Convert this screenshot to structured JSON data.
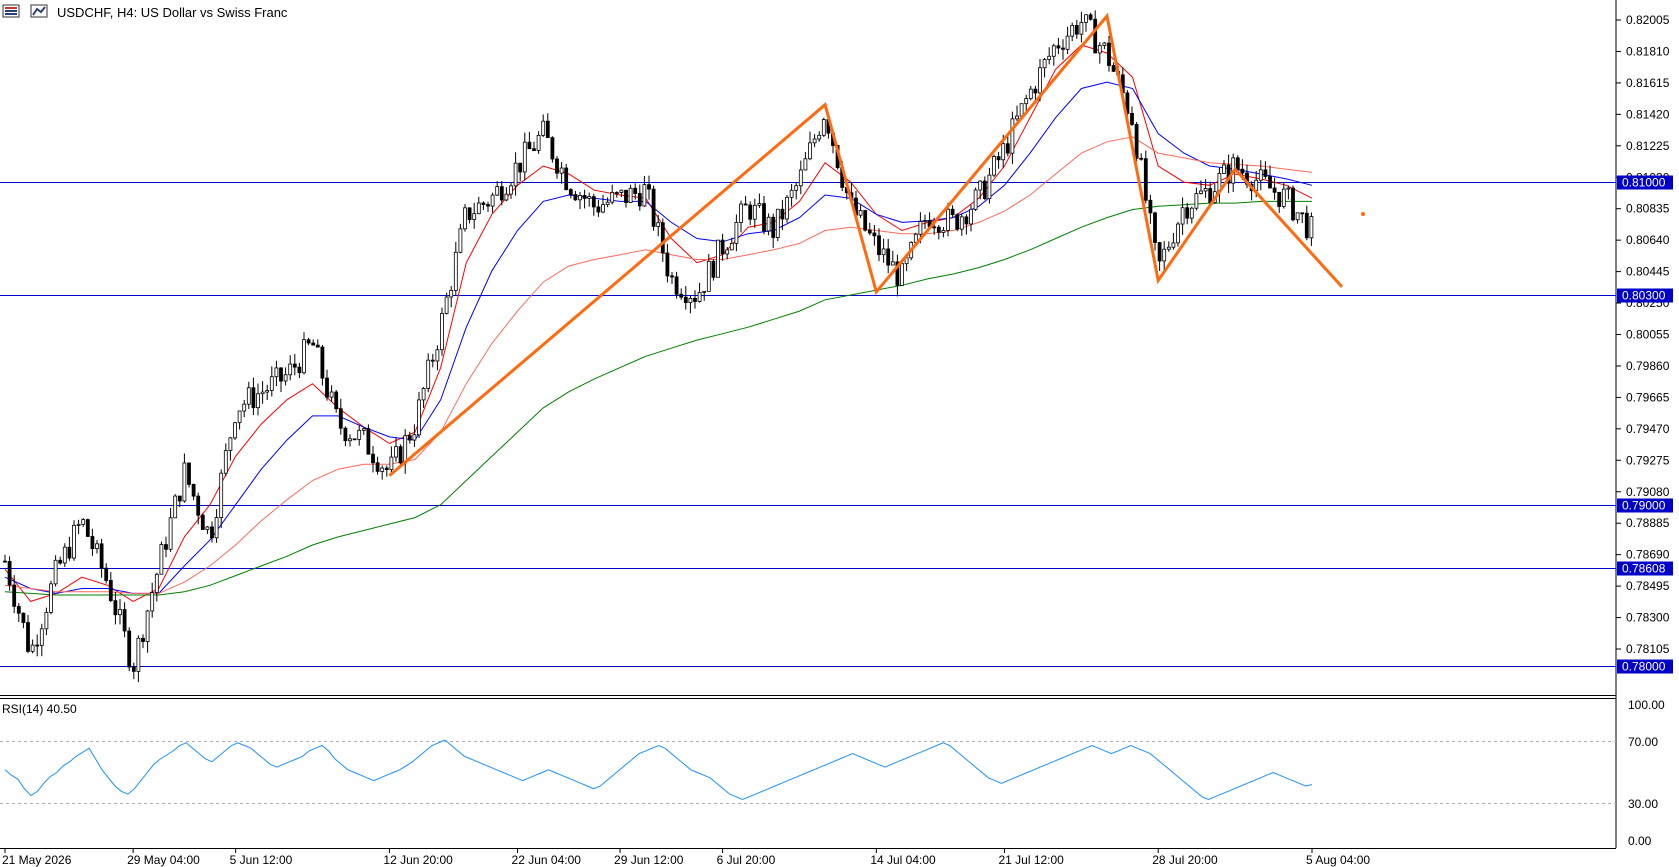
{
  "header": {
    "title": "USDCHF, H4:  US Dollar vs Swiss Franc",
    "icon_1": "toolbar-grid-icon",
    "icon_2": "toolbar-chart-icon"
  },
  "colors": {
    "candle": "#000000",
    "ma_fast": "#ff0000",
    "ma_mid": "#0000ff",
    "ma_slow": "#ff6a5a",
    "ma_long": "#008000",
    "zigzag": "#ff6a0f",
    "hline": "#0000c8",
    "rsi": "#1e90ff",
    "axis_label_bg": "#0000c8",
    "axis_label_text": "#ffffff"
  },
  "rsi_panel": {
    "label": "RSI(14) 40.50",
    "levels": [
      "100.00",
      "70.00",
      "30.00",
      "0.00"
    ]
  },
  "chart_data": {
    "type": "candlestick",
    "title": "USDCHF, H4:  US Dollar vs Swiss Franc",
    "price_ticks": [
      "0.82005",
      "0.81810",
      "0.81615",
      "0.81420",
      "0.81225",
      "0.81030",
      "0.80835",
      "0.80640",
      "0.80445",
      "0.80250",
      "0.80055",
      "0.79860",
      "0.79665",
      "0.79470",
      "0.79275",
      "0.79080",
      "0.78885",
      "0.78690",
      "0.78495",
      "0.78300",
      "0.78105"
    ],
    "horizontal_levels": [
      {
        "value": 0.81,
        "label": "0.81000"
      },
      {
        "value": 0.803,
        "label": "0.80300"
      },
      {
        "value": 0.79,
        "label": "0.79000"
      },
      {
        "value": 0.78608,
        "label": "0.78608"
      },
      {
        "value": 0.78,
        "label": "0.78000"
      }
    ],
    "x_ticks": [
      "21 May 2026",
      "29 May 04:00",
      "5 Jun 12:00",
      "12 Jun 20:00",
      "22 Jun 04:00",
      "29 Jun 12:00",
      "6 Jul 20:00",
      "14 Jul 04:00",
      "21 Jul 12:00",
      "28 Jul 20:00",
      "5 Aug 04:00"
    ],
    "close_path": [
      [
        "21 May 2026",
        0.7865
      ],
      [
        "24 May",
        0.7808
      ],
      [
        "26 May",
        0.7858
      ],
      [
        "27 May",
        0.789
      ],
      [
        "28 May",
        0.7852
      ],
      [
        "29 May 04:00",
        0.78
      ],
      [
        "1 Jun",
        0.7862
      ],
      [
        "3 Jun",
        0.792
      ],
      [
        "4 Jun",
        0.788
      ],
      [
        "5 Jun 12:00",
        0.796
      ],
      [
        "7 Jun",
        0.797
      ],
      [
        "9 Jun",
        0.798
      ],
      [
        "10 Jun",
        0.8
      ],
      [
        "11 Jun",
        0.795
      ],
      [
        "12 Jun",
        0.794
      ],
      [
        "12 Jun 20:00",
        0.792
      ],
      [
        "14 Jun",
        0.795
      ],
      [
        "16 Jun",
        0.801
      ],
      [
        "18 Jun",
        0.808
      ],
      [
        "20 Jun",
        0.809
      ],
      [
        "22 Jun 04:00",
        0.811
      ],
      [
        "24 Jun",
        0.813
      ],
      [
        "26 Jun",
        0.81
      ],
      [
        "27 Jun",
        0.8085
      ],
      [
        "29 Jun 12:00",
        0.809
      ],
      [
        "1 Jul",
        0.8095
      ],
      [
        "2 Jul",
        0.804
      ],
      [
        "4 Jul",
        0.803
      ],
      [
        "6 Jul 20:00",
        0.806
      ],
      [
        "8 Jul",
        0.8085
      ],
      [
        "10 Jul",
        0.807
      ],
      [
        "11 Jul",
        0.81
      ],
      [
        "12 Jul",
        0.8145
      ],
      [
        "13 Jul",
        0.8085
      ],
      [
        "14 Jul 04:00",
        0.806
      ],
      [
        "15 Jul",
        0.804
      ],
      [
        "16 Jul",
        0.808
      ],
      [
        "18 Jul",
        0.8075
      ],
      [
        "20 Jul",
        0.809
      ],
      [
        "21 Jul 12:00",
        0.812
      ],
      [
        "23 Jul",
        0.8155
      ],
      [
        "24 Jul",
        0.8185
      ],
      [
        "26 Jul",
        0.82
      ],
      [
        "27 Jul",
        0.818
      ],
      [
        "28 Jul",
        0.814
      ],
      [
        "28 Jul 20:00",
        0.8045
      ],
      [
        "30 Jul",
        0.8085
      ],
      [
        "31 Jul",
        0.8095
      ],
      [
        "1 Aug",
        0.811
      ],
      [
        "3 Aug",
        0.81
      ],
      [
        "4 Aug",
        0.809
      ],
      [
        "5 Aug 04:00",
        0.807
      ]
    ],
    "moving_averages": [
      {
        "color_key": "ma_fast",
        "values": [
          0.786,
          0.784,
          0.7845,
          0.7855,
          0.785,
          0.784,
          0.7848,
          0.788,
          0.79,
          0.793,
          0.795,
          0.7965,
          0.7975,
          0.796,
          0.7948,
          0.7938,
          0.7945,
          0.7985,
          0.805,
          0.808,
          0.8098,
          0.811,
          0.8105,
          0.8095,
          0.8092,
          0.809,
          0.8065,
          0.805,
          0.8055,
          0.8072,
          0.8075,
          0.8088,
          0.8112,
          0.81,
          0.808,
          0.807,
          0.8075,
          0.8078,
          0.809,
          0.811,
          0.814,
          0.817,
          0.8185,
          0.818,
          0.8165,
          0.811,
          0.81,
          0.8098,
          0.8105,
          0.8102,
          0.8098,
          0.809
        ]
      },
      {
        "color_key": "ma_mid",
        "values": [
          0.7855,
          0.7848,
          0.7845,
          0.7848,
          0.7848,
          0.7845,
          0.7845,
          0.7862,
          0.7878,
          0.79,
          0.7922,
          0.794,
          0.7955,
          0.7955,
          0.7948,
          0.7942,
          0.794,
          0.7965,
          0.801,
          0.8045,
          0.807,
          0.8088,
          0.8092,
          0.809,
          0.8088,
          0.8088,
          0.8075,
          0.8065,
          0.8063,
          0.8068,
          0.807,
          0.8078,
          0.8092,
          0.809,
          0.808,
          0.8075,
          0.8076,
          0.8078,
          0.8085,
          0.8098,
          0.8118,
          0.814,
          0.8158,
          0.8162,
          0.8158,
          0.813,
          0.8118,
          0.811,
          0.8108,
          0.8105,
          0.8102,
          0.8098
        ]
      },
      {
        "color_key": "ma_slow",
        "values": [
          0.785,
          0.7848,
          0.7846,
          0.7846,
          0.7846,
          0.7845,
          0.7845,
          0.7852,
          0.7862,
          0.7875,
          0.789,
          0.7903,
          0.7915,
          0.7922,
          0.7925,
          0.7925,
          0.7928,
          0.7945,
          0.7975,
          0.8,
          0.802,
          0.8038,
          0.8048,
          0.8052,
          0.8055,
          0.8058,
          0.8055,
          0.8052,
          0.8052,
          0.8055,
          0.8058,
          0.8062,
          0.807,
          0.8072,
          0.807,
          0.8068,
          0.8068,
          0.807,
          0.8075,
          0.8082,
          0.8092,
          0.8105,
          0.8118,
          0.8125,
          0.8128,
          0.8118,
          0.8115,
          0.8112,
          0.8111,
          0.811,
          0.8108,
          0.8106
        ]
      },
      {
        "color_key": "ma_long",
        "values": [
          0.7846,
          0.7845,
          0.7844,
          0.7844,
          0.7844,
          0.7844,
          0.7844,
          0.7846,
          0.785,
          0.7856,
          0.7862,
          0.7868,
          0.7875,
          0.788,
          0.7884,
          0.7888,
          0.7892,
          0.79,
          0.7915,
          0.793,
          0.7945,
          0.796,
          0.797,
          0.7978,
          0.7985,
          0.7992,
          0.7997,
          0.8002,
          0.8006,
          0.801,
          0.8015,
          0.802,
          0.8027,
          0.803,
          0.8033,
          0.8036,
          0.804,
          0.8043,
          0.8047,
          0.8052,
          0.8058,
          0.8065,
          0.8072,
          0.8078,
          0.8083,
          0.8085,
          0.8086,
          0.8087,
          0.8087,
          0.8088,
          0.8088,
          0.8088
        ]
      }
    ],
    "zigzag": [
      [
        "12 Jun 20:00",
        0.7918
      ],
      [
        "12 Jul",
        0.8148
      ],
      [
        "14 Jul 04:00",
        0.8032
      ],
      [
        "27 Jul",
        0.8203
      ],
      [
        "28 Jul 20:00",
        0.8039
      ],
      [
        "1 Aug",
        0.8108
      ],
      [
        "6 Aug",
        0.8035
      ]
    ],
    "rsi": {
      "period": 14,
      "last": 40.5,
      "ylim": [
        0,
        100
      ],
      "levels": [
        70,
        30
      ],
      "values": [
        52,
        48,
        45,
        38,
        33,
        36,
        42,
        47,
        50,
        55,
        58,
        62,
        65,
        68,
        60,
        52,
        46,
        40,
        36,
        34,
        38,
        44,
        50,
        56,
        60,
        63,
        66,
        70,
        72,
        68,
        64,
        60,
        58,
        62,
        66,
        70,
        72,
        70,
        68,
        64,
        60,
        56,
        54,
        56,
        58,
        60,
        62,
        66,
        68,
        70,
        66,
        60,
        56,
        52,
        50,
        48,
        46,
        44,
        46,
        48,
        50,
        52,
        55,
        58,
        62,
        66,
        70,
        72,
        74,
        70,
        66,
        62,
        60,
        58,
        56,
        54,
        52,
        50,
        48,
        46,
        44,
        46,
        48,
        50,
        52,
        50,
        48,
        46,
        44,
        42,
        40,
        38,
        40,
        44,
        48,
        52,
        56,
        60,
        64,
        66,
        68,
        70,
        68,
        64,
        60,
        56,
        52,
        50,
        48,
        46,
        42,
        38,
        34,
        32,
        30,
        32,
        34,
        36,
        38,
        40,
        42,
        44,
        46,
        48,
        50,
        52,
        54,
        56,
        58,
        60,
        62,
        64,
        62,
        60,
        58,
        56,
        54,
        56,
        58,
        60,
        62,
        64,
        66,
        68,
        70,
        72,
        70,
        66,
        62,
        58,
        54,
        50,
        46,
        44,
        42,
        44,
        46,
        48,
        50,
        52,
        54,
        56,
        58,
        60,
        62,
        64,
        66,
        68,
        70,
        68,
        66,
        64,
        66,
        68,
        70,
        68,
        66,
        64,
        60,
        56,
        52,
        48,
        44,
        40,
        36,
        32,
        30,
        32,
        34,
        36,
        38,
        40,
        42,
        44,
        46,
        48,
        50,
        48,
        46,
        44,
        42,
        40,
        41
      ]
    },
    "xlabel": "",
    "ylabel": ""
  }
}
